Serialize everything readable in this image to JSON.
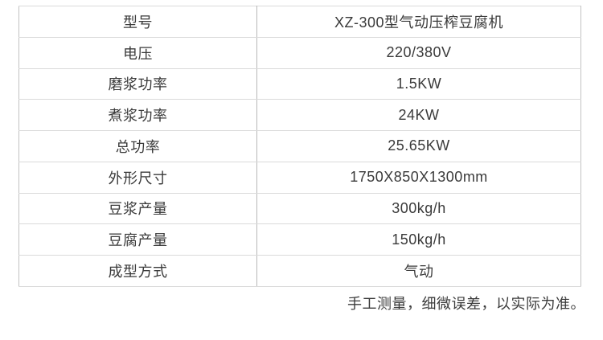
{
  "spec_table": {
    "rows": [
      {
        "label": "型号",
        "value": "XZ-300型气动压榨豆腐机"
      },
      {
        "label": "电压",
        "value": "220/380V"
      },
      {
        "label": "磨浆功率",
        "value": "1.5KW"
      },
      {
        "label": "煮浆功率",
        "value": "24KW"
      },
      {
        "label": "总功率",
        "value": "25.65KW"
      },
      {
        "label": "外形尺寸",
        "value": "1750X850X1300mm"
      },
      {
        "label": "豆浆产量",
        "value": "300kg/h"
      },
      {
        "label": "豆腐产量",
        "value": "150kg/h"
      },
      {
        "label": "成型方式",
        "value": "气动"
      }
    ]
  },
  "footnote": {
    "text": "手工测量，细微误差，以实际为准。"
  },
  "colors": {
    "background": "#ffffff",
    "table_outer_border": "#c2c2c2",
    "row_divider": "#dadada",
    "column_divider": "#b8b8b8",
    "text": "#3a3a3a"
  }
}
